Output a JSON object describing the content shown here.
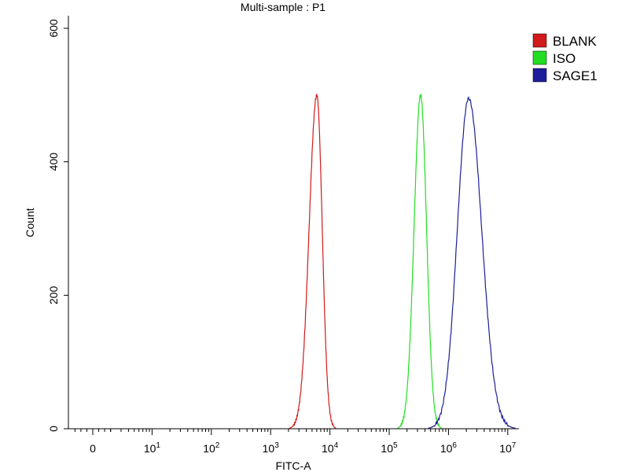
{
  "chart_data": {
    "type": "line",
    "title": "Multi-sample : P1",
    "xlabel": "FITC-A",
    "ylabel": "Count",
    "x_scale": "biexponential",
    "xlim": [
      -0.4,
      7.1
    ],
    "ylim": [
      0,
      600
    ],
    "y_ticks": [
      0,
      200,
      400,
      600
    ],
    "y_tick_labels": [
      "0",
      "200",
      "400",
      "600"
    ],
    "x_ticks": [
      {
        "value": 0,
        "base": "0",
        "exp": ""
      },
      {
        "value": 1,
        "base": "10",
        "exp": "1"
      },
      {
        "value": 2,
        "base": "10",
        "exp": "2"
      },
      {
        "value": 3,
        "base": "10",
        "exp": "3"
      },
      {
        "value": 4,
        "base": "10",
        "exp": "4"
      },
      {
        "value": 5,
        "base": "10",
        "exp": "5"
      },
      {
        "value": 6,
        "base": "10",
        "exp": "6"
      },
      {
        "value": 7,
        "base": "10",
        "exp": "7"
      }
    ],
    "grid": false,
    "legend_position": "right",
    "series": [
      {
        "name": "BLANK",
        "color": "#d11a1a",
        "peak_x": 3.78,
        "peak_y": 500,
        "width_left": 0.13,
        "width_right": 0.09
      },
      {
        "name": "ISO",
        "color": "#22dd22",
        "peak_x": 5.53,
        "peak_y": 500,
        "width_left": 0.11,
        "width_right": 0.1
      },
      {
        "name": "SAGE1",
        "color": "#1e1e9a",
        "peak_x": 6.34,
        "peak_y": 495,
        "width_left": 0.19,
        "width_right": 0.22
      }
    ]
  }
}
